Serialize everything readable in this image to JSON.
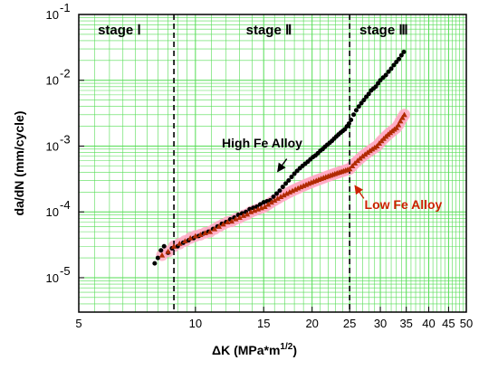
{
  "chart_data": {
    "type": "scatter",
    "xscale": "log",
    "yscale": "log",
    "xlim": [
      5,
      50
    ],
    "ylim": [
      3e-06,
      0.1
    ],
    "xlabel_main": "ΔK (MPa*m",
    "xlabel_sup": "1/2",
    "xlabel_end": ")",
    "ylabel": "da/dN (mm/cycle)",
    "grid": true,
    "grid_color": "#55dd55",
    "x_ticks": [
      {
        "value": 5,
        "label": "5"
      },
      {
        "value": 10,
        "label": "10"
      },
      {
        "value": 15,
        "label": "15"
      },
      {
        "value": 20,
        "label": "20"
      },
      {
        "value": 25,
        "label": "25"
      },
      {
        "value": 30,
        "label": "30"
      },
      {
        "value": 35,
        "label": "35"
      },
      {
        "value": 40,
        "label": "40"
      },
      {
        "value": 45,
        "label": "45"
      },
      {
        "value": 50,
        "label": "50"
      }
    ],
    "y_ticks": [
      {
        "value": 1e-05,
        "base": "10",
        "exp": "-5"
      },
      {
        "value": 0.0001,
        "base": "10",
        "exp": "-4"
      },
      {
        "value": 0.001,
        "base": "10",
        "exp": "-3"
      },
      {
        "value": 0.01,
        "base": "10",
        "exp": "-2"
      },
      {
        "value": 0.1,
        "base": "10",
        "exp": "-1"
      }
    ],
    "stage_boundaries": [
      8.8,
      25
    ],
    "stage_labels": [
      {
        "text": "stage Ⅰ",
        "x": 5.6,
        "y": 0.05
      },
      {
        "text": "stage Ⅱ",
        "x": 13.5,
        "y": 0.05
      },
      {
        "text": "stage Ⅲ",
        "x": 26.5,
        "y": 0.05
      }
    ],
    "annotations": [
      {
        "name": "high-fe-label",
        "text": "High Fe Alloy",
        "x": 11.7,
        "y": 0.00095,
        "arrow_from": [
          17.2,
          0.00064
        ],
        "arrow_to": [
          16.3,
          0.00041
        ],
        "color": "#000000"
      },
      {
        "name": "low-fe-label",
        "text": "Low Fe Alloy",
        "x": 27.3,
        "y": 0.00011,
        "arrow_from": [
          27.2,
          0.00016
        ],
        "arrow_to": [
          25.8,
          0.00025
        ],
        "color": "#cc2200"
      }
    ],
    "series": [
      {
        "name": "High Fe Alloy",
        "color": "#000000",
        "marker": "circle",
        "points": [
          [
            7.85,
            1.65e-05
          ],
          [
            8.0,
            2e-05
          ],
          [
            8.15,
            2.6e-05
          ],
          [
            8.3,
            3e-05
          ],
          [
            8.5,
            2.4e-05
          ],
          [
            8.7,
            2.8e-05
          ],
          [
            9.0,
            3e-05
          ],
          [
            9.3,
            3.4e-05
          ],
          [
            9.6,
            3.7e-05
          ],
          [
            9.9,
            4e-05
          ],
          [
            10.2,
            4.3e-05
          ],
          [
            10.5,
            4.7e-05
          ],
          [
            10.8,
            5e-05
          ],
          [
            11.1,
            5.5e-05
          ],
          [
            11.4,
            6e-05
          ],
          [
            11.7,
            6.6e-05
          ],
          [
            12.0,
            7e-05
          ],
          [
            12.3,
            7.7e-05
          ],
          [
            12.6,
            8.2e-05
          ],
          [
            12.9,
            9e-05
          ],
          [
            13.2,
            9.5e-05
          ],
          [
            13.5,
            0.0001
          ],
          [
            13.8,
            0.00011
          ],
          [
            14.1,
            0.000115
          ],
          [
            14.4,
            0.00012
          ],
          [
            14.7,
            0.00013
          ],
          [
            15.0,
            0.00014
          ],
          [
            15.3,
            0.000145
          ],
          [
            15.6,
            0.00015
          ],
          [
            15.9,
            0.00017
          ],
          [
            16.2,
            0.00019
          ],
          [
            16.5,
            0.00021
          ],
          [
            16.8,
            0.00024
          ],
          [
            17.1,
            0.00027
          ],
          [
            17.4,
            0.0003
          ],
          [
            17.7,
            0.00034
          ],
          [
            18.0,
            0.00038
          ],
          [
            18.3,
            0.00042
          ],
          [
            18.6,
            0.00046
          ],
          [
            18.9,
            0.0005
          ],
          [
            19.2,
            0.00054
          ],
          [
            19.5,
            0.00058
          ],
          [
            19.8,
            0.00063
          ],
          [
            20.1,
            0.00068
          ],
          [
            20.4,
            0.00072
          ],
          [
            20.7,
            0.00078
          ],
          [
            21.0,
            0.00085
          ],
          [
            21.3,
            0.0009
          ],
          [
            21.6,
            0.00098
          ],
          [
            21.9,
            0.00105
          ],
          [
            22.2,
            0.00112
          ],
          [
            22.5,
            0.0012
          ],
          [
            22.8,
            0.0013
          ],
          [
            23.1,
            0.0014
          ],
          [
            23.4,
            0.0015
          ],
          [
            23.7,
            0.0016
          ],
          [
            24.0,
            0.0017
          ],
          [
            24.3,
            0.0018
          ],
          [
            24.6,
            0.002
          ],
          [
            24.9,
            0.0022
          ],
          [
            25.2,
            0.0025
          ],
          [
            25.6,
            0.003
          ],
          [
            26.0,
            0.0035
          ],
          [
            26.4,
            0.004
          ],
          [
            26.8,
            0.0045
          ],
          [
            27.2,
            0.005
          ],
          [
            27.6,
            0.0056
          ],
          [
            28.0,
            0.0062
          ],
          [
            28.4,
            0.007
          ],
          [
            28.8,
            0.0075
          ],
          [
            29.2,
            0.008
          ],
          [
            29.6,
            0.009
          ],
          [
            30.0,
            0.01
          ],
          [
            30.5,
            0.011
          ],
          [
            31.0,
            0.012
          ],
          [
            31.5,
            0.0135
          ],
          [
            32.0,
            0.015
          ],
          [
            32.5,
            0.017
          ],
          [
            33.0,
            0.019
          ],
          [
            33.5,
            0.021
          ],
          [
            34.0,
            0.024
          ],
          [
            34.5,
            0.027
          ]
        ]
      },
      {
        "name": "Low Fe Alloy",
        "color": "#b02a00",
        "marker": "triangle",
        "band_color": "#ffaac4",
        "points": [
          [
            8.2,
            2.2e-05
          ],
          [
            8.5,
            2.5e-05
          ],
          [
            8.8,
            3e-05
          ],
          [
            9.1,
            3.3e-05
          ],
          [
            9.4,
            3.6e-05
          ],
          [
            9.7,
            4e-05
          ],
          [
            10.0,
            4.3e-05
          ],
          [
            10.3,
            4.5e-05
          ],
          [
            10.6,
            4.8e-05
          ],
          [
            10.9,
            5e-05
          ],
          [
            11.2,
            5.5e-05
          ],
          [
            11.5,
            6e-05
          ],
          [
            11.8,
            6.5e-05
          ],
          [
            12.1,
            7e-05
          ],
          [
            12.4,
            7.2e-05
          ],
          [
            12.7,
            7.8e-05
          ],
          [
            13.0,
            8.2e-05
          ],
          [
            13.3,
            8.8e-05
          ],
          [
            13.6,
            9.2e-05
          ],
          [
            13.9,
            0.0001
          ],
          [
            14.2,
            0.000105
          ],
          [
            14.5,
            0.00011
          ],
          [
            14.8,
            0.000115
          ],
          [
            15.1,
            0.00012
          ],
          [
            15.4,
            0.00013
          ],
          [
            15.7,
            0.00014
          ],
          [
            16.0,
            0.00015
          ],
          [
            16.3,
            0.00016
          ],
          [
            16.6,
            0.00017
          ],
          [
            16.9,
            0.00018
          ],
          [
            17.2,
            0.00019
          ],
          [
            17.5,
            0.0002
          ],
          [
            17.8,
            0.00021
          ],
          [
            18.1,
            0.00022
          ],
          [
            18.4,
            0.00023
          ],
          [
            18.7,
            0.00024
          ],
          [
            19.0,
            0.00025
          ],
          [
            19.3,
            0.00026
          ],
          [
            19.6,
            0.00027
          ],
          [
            19.9,
            0.00028
          ],
          [
            20.2,
            0.00029
          ],
          [
            20.5,
            0.0003
          ],
          [
            20.8,
            0.00031
          ],
          [
            21.1,
            0.00032
          ],
          [
            21.4,
            0.00033
          ],
          [
            21.7,
            0.00034
          ],
          [
            22.0,
            0.00035
          ],
          [
            22.3,
            0.00036
          ],
          [
            22.6,
            0.00037
          ],
          [
            22.9,
            0.00038
          ],
          [
            23.2,
            0.00039
          ],
          [
            23.5,
            0.0004
          ],
          [
            23.8,
            0.00041
          ],
          [
            24.1,
            0.00042
          ],
          [
            24.4,
            0.00043
          ],
          [
            24.7,
            0.00044
          ],
          [
            25.0,
            0.00045
          ],
          [
            25.4,
            0.0005
          ],
          [
            25.8,
            0.00055
          ],
          [
            26.2,
            0.0006
          ],
          [
            26.6,
            0.00065
          ],
          [
            27.0,
            0.0007
          ],
          [
            27.4,
            0.00075
          ],
          [
            27.8,
            0.0008
          ],
          [
            28.2,
            0.00085
          ],
          [
            28.6,
            0.0009
          ],
          [
            29.0,
            0.00095
          ],
          [
            29.4,
            0.001
          ],
          [
            29.8,
            0.0011
          ],
          [
            30.2,
            0.0012
          ],
          [
            30.6,
            0.0013
          ],
          [
            31.0,
            0.0014
          ],
          [
            31.4,
            0.0015
          ],
          [
            31.8,
            0.0016
          ],
          [
            32.2,
            0.0017
          ],
          [
            32.6,
            0.0018
          ],
          [
            33.0,
            0.0019
          ],
          [
            33.4,
            0.0021
          ],
          [
            33.8,
            0.0024
          ],
          [
            34.2,
            0.0027
          ],
          [
            34.6,
            0.003
          ]
        ]
      }
    ]
  }
}
